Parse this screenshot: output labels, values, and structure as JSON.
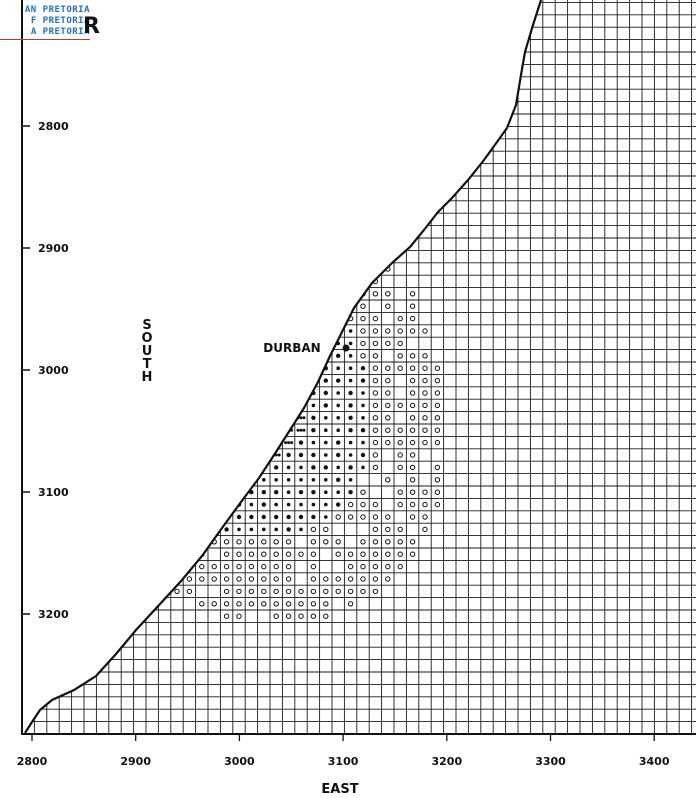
{
  "watermark": {
    "line1": "AN PRETORIA",
    "line2": "F PRETORIA",
    "line3": "A PRETORIA"
  },
  "corner_glyph": "R",
  "map": {
    "place_label": "DURBAN",
    "axis_south_label": "SOUTH",
    "axis_east_label": "EAST",
    "south_ticks": [
      "2800",
      "2900",
      "3000",
      "3100",
      "3200"
    ],
    "east_ticks": [
      "2800",
      "2900",
      "3000",
      "3100",
      "3200",
      "3300",
      "3400"
    ],
    "colors": {
      "ink": "#111111",
      "grid": "#1a1a1a",
      "paper": "#ffffff",
      "watermark": "#1f6fc4"
    }
  }
}
